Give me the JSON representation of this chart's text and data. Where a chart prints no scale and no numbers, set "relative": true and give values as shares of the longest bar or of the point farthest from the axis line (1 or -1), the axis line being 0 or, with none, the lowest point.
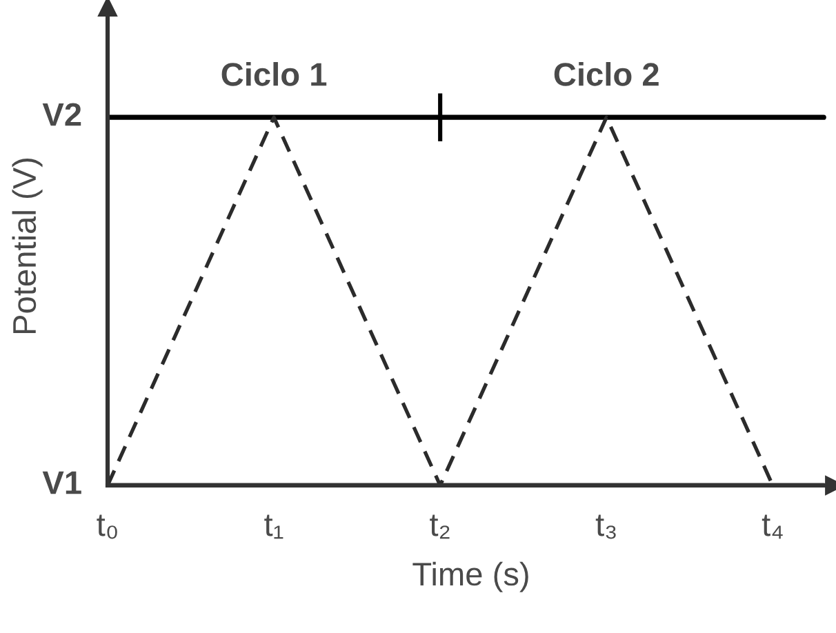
{
  "chart_data": {
    "type": "line",
    "xlabel": "Time (s)",
    "ylabel": "Potential (V)",
    "categories": [
      "t₀",
      "t₁",
      "t₂",
      "t₃",
      "t₄"
    ],
    "relative": true,
    "line_style": "dashed",
    "series": [
      {
        "color": "#2b2b2b",
        "values": [
          0,
          1,
          0,
          1,
          0
        ]
      }
    ],
    "ref_lines": [
      {
        "axis": "y",
        "value": 1,
        "label": "V2",
        "color": "#000000",
        "line_style": "solid"
      },
      {
        "axis": "y",
        "value": 0,
        "label": "V1",
        "color": "#333333",
        "line_style": "solid"
      }
    ],
    "annotations": [
      {
        "text": "Ciclo 1",
        "x": "t₁",
        "y": 1
      },
      {
        "text": "Ciclo 2",
        "x": "t₃",
        "y": 1
      }
    ]
  }
}
